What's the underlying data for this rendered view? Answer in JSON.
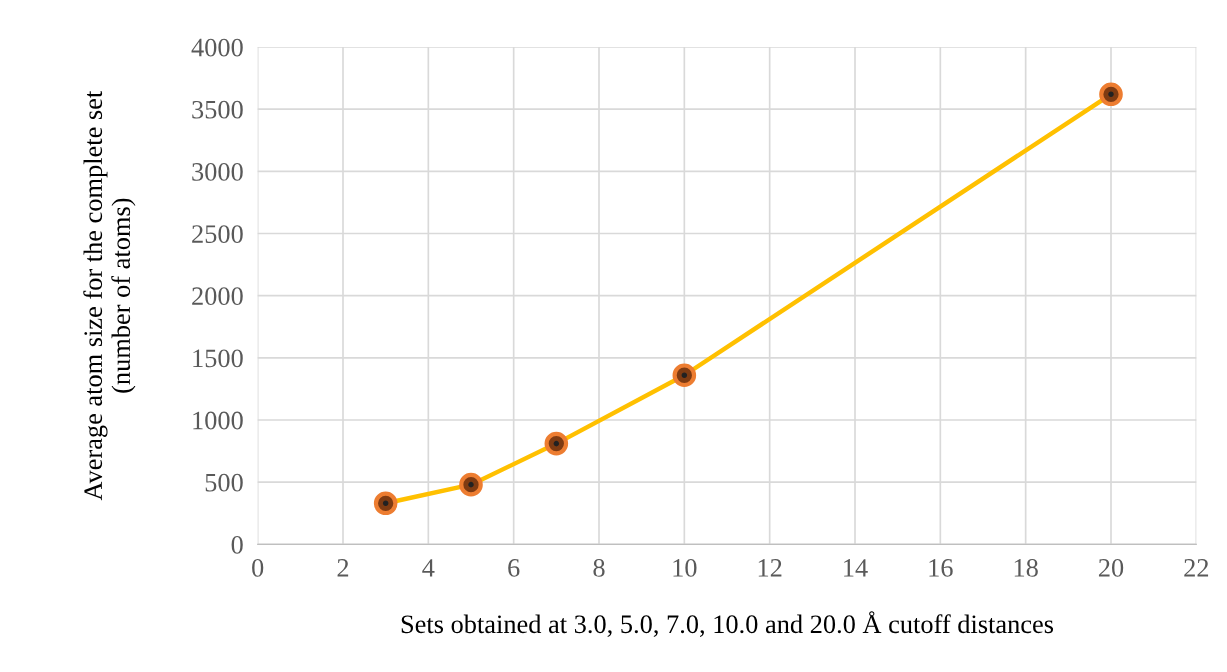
{
  "chart_data": {
    "type": "line",
    "xlabel": "Sets obtained at 3.0, 5.0, 7.0, 10.0 and 20.0 Å cutoff distances",
    "ylabel": "Average atom size for the complete set\n(number of atoms)",
    "x": [
      3,
      5,
      7,
      10,
      20
    ],
    "series": [
      {
        "color": "#ffc000",
        "colors": [
          "#ed7d31",
          "#ed7d31",
          "#ed7d31",
          "#ed7d31",
          "#ed7d31"
        ],
        "values": [
          330,
          480,
          810,
          1360,
          3620
        ]
      }
    ],
    "xlim": [
      0,
      22
    ],
    "xticks": [
      0,
      2,
      4,
      6,
      8,
      10,
      12,
      14,
      16,
      18,
      20,
      22
    ],
    "ylim": [
      0,
      4000
    ],
    "yticks": [
      0,
      500,
      1000,
      1500,
      2000,
      2500,
      3000,
      3500,
      4000
    ],
    "grid": true,
    "marker": "circle",
    "line_style": "solid"
  }
}
